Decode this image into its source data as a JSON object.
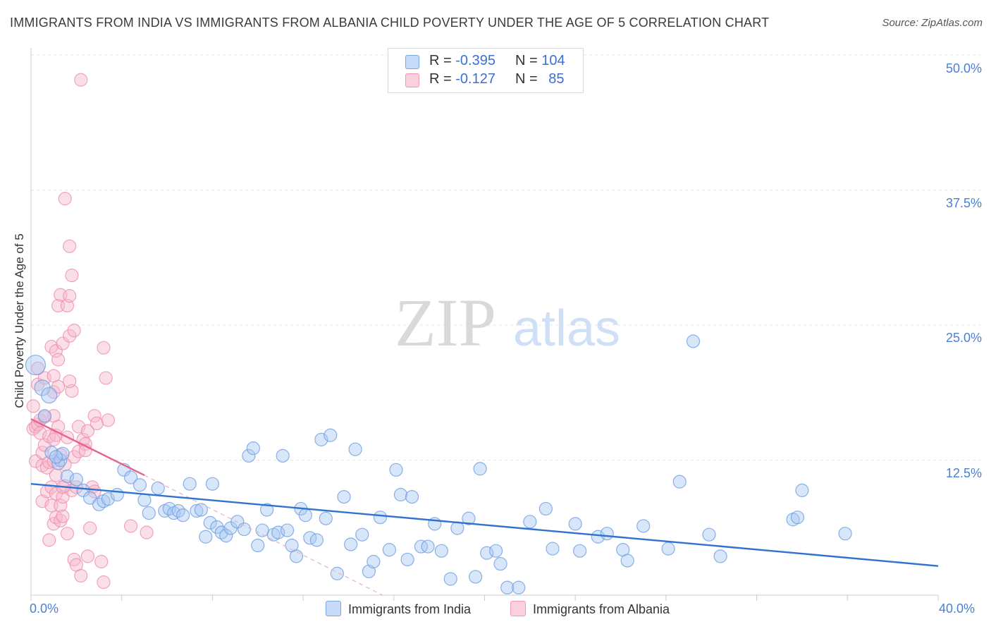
{
  "header": {
    "title": "IMMIGRANTS FROM INDIA VS IMMIGRANTS FROM ALBANIA CHILD POVERTY UNDER THE AGE OF 5 CORRELATION CHART",
    "source": "Source: ZipAtlas.com"
  },
  "watermark": {
    "zip": "ZIP",
    "atlas": "atlas"
  },
  "legend_stats": [
    {
      "r_label": "R =",
      "r_value": "-0.395",
      "n_label": "N =",
      "n_value": "104",
      "color": "#a9c8f5"
    },
    {
      "r_label": "R =",
      "r_value": "-0.127",
      "n_label": "N =",
      "n_value": "85",
      "color": "#f7b8cb"
    }
  ],
  "chart_data": {
    "type": "scatter",
    "title": "IMMIGRANTS FROM INDIA VS IMMIGRANTS FROM ALBANIA CHILD POVERTY UNDER THE AGE OF 5 CORRELATION CHART",
    "xlabel": "",
    "ylabel": "Child Poverty Under the Age of 5",
    "xlim": [
      0,
      40
    ],
    "ylim": [
      0,
      50
    ],
    "x_tick_labels": [
      "0.0%",
      "40.0%"
    ],
    "y_ticks": [
      12.5,
      25.0,
      37.5,
      50.0
    ],
    "y_tick_labels": [
      "12.5%",
      "25.0%",
      "37.5%",
      "50.0%"
    ],
    "grid": true,
    "legend_position": "bottom",
    "series": [
      {
        "name": "Immigrants from India",
        "color": "#a9c8f5",
        "stroke": "#6f9de0",
        "trend": {
          "x": [
            0,
            40
          ],
          "y": [
            10.3,
            2.7
          ],
          "color": "#2f72d0"
        },
        "points": [
          [
            0.2,
            21.3
          ],
          [
            0.5,
            19.2
          ],
          [
            0.8,
            18.5
          ],
          [
            0.6,
            16.6
          ],
          [
            0.9,
            13.2
          ],
          [
            1.2,
            12.2
          ],
          [
            1.3,
            12.5
          ],
          [
            1.4,
            13.1
          ],
          [
            1.6,
            11.0
          ],
          [
            2.0,
            10.7
          ],
          [
            2.3,
            9.7
          ],
          [
            2.6,
            9.0
          ],
          [
            3.0,
            8.4
          ],
          [
            3.2,
            8.7
          ],
          [
            3.4,
            8.9
          ],
          [
            3.8,
            9.3
          ],
          [
            4.1,
            11.6
          ],
          [
            4.4,
            10.9
          ],
          [
            4.8,
            10.2
          ],
          [
            5.0,
            8.8
          ],
          [
            5.2,
            7.6
          ],
          [
            5.6,
            9.9
          ],
          [
            5.9,
            7.8
          ],
          [
            6.1,
            8.0
          ],
          [
            6.3,
            7.6
          ],
          [
            6.5,
            7.8
          ],
          [
            6.7,
            7.4
          ],
          [
            7.0,
            10.3
          ],
          [
            7.3,
            7.8
          ],
          [
            7.5,
            7.9
          ],
          [
            7.7,
            5.4
          ],
          [
            7.9,
            6.7
          ],
          [
            8.0,
            10.3
          ],
          [
            8.2,
            6.3
          ],
          [
            8.4,
            5.8
          ],
          [
            8.6,
            5.5
          ],
          [
            8.8,
            6.2
          ],
          [
            9.1,
            6.8
          ],
          [
            9.4,
            6.1
          ],
          [
            9.6,
            12.9
          ],
          [
            9.8,
            13.6
          ],
          [
            10.0,
            4.6
          ],
          [
            10.2,
            6.0
          ],
          [
            10.4,
            7.9
          ],
          [
            10.7,
            5.6
          ],
          [
            10.9,
            5.8
          ],
          [
            11.1,
            12.9
          ],
          [
            11.3,
            6.0
          ],
          [
            11.5,
            4.6
          ],
          [
            11.7,
            3.6
          ],
          [
            11.9,
            8.0
          ],
          [
            12.1,
            7.4
          ],
          [
            12.3,
            5.3
          ],
          [
            12.6,
            5.1
          ],
          [
            12.8,
            14.4
          ],
          [
            13.0,
            7.1
          ],
          [
            13.2,
            14.8
          ],
          [
            13.5,
            2.0
          ],
          [
            13.8,
            9.1
          ],
          [
            14.1,
            4.7
          ],
          [
            14.3,
            13.5
          ],
          [
            14.6,
            5.6
          ],
          [
            14.9,
            2.2
          ],
          [
            15.1,
            3.1
          ],
          [
            15.4,
            7.2
          ],
          [
            15.8,
            4.2
          ],
          [
            16.1,
            11.6
          ],
          [
            16.3,
            9.3
          ],
          [
            16.6,
            3.3
          ],
          [
            16.8,
            9.1
          ],
          [
            17.2,
            4.5
          ],
          [
            17.5,
            4.5
          ],
          [
            17.8,
            6.6
          ],
          [
            18.1,
            4.1
          ],
          [
            18.5,
            1.5
          ],
          [
            18.8,
            6.2
          ],
          [
            19.3,
            7.1
          ],
          [
            19.6,
            1.7
          ],
          [
            19.8,
            11.7
          ],
          [
            20.1,
            3.9
          ],
          [
            20.5,
            4.1
          ],
          [
            20.7,
            2.9
          ],
          [
            21.0,
            0.7
          ],
          [
            21.5,
            0.7
          ],
          [
            22.0,
            6.8
          ],
          [
            22.7,
            8.0
          ],
          [
            23.0,
            4.3
          ],
          [
            24.0,
            6.6
          ],
          [
            24.2,
            4.1
          ],
          [
            25.0,
            5.4
          ],
          [
            25.4,
            5.7
          ],
          [
            26.1,
            4.2
          ],
          [
            26.3,
            3.2
          ],
          [
            27.0,
            6.4
          ],
          [
            28.1,
            4.3
          ],
          [
            28.6,
            10.5
          ],
          [
            29.2,
            23.5
          ],
          [
            29.9,
            5.6
          ],
          [
            30.4,
            3.6
          ],
          [
            33.6,
            7.0
          ],
          [
            33.8,
            7.2
          ],
          [
            34.0,
            9.7
          ],
          [
            35.9,
            5.7
          ],
          [
            1.1,
            12.8
          ]
        ]
      },
      {
        "name": "Immigrants from Albania",
        "color": "#f7b8cb",
        "stroke": "#ee8fae",
        "trend": {
          "x": [
            0,
            5
          ],
          "y": [
            16.3,
            11.1
          ],
          "color": "#e8628c"
        },
        "trend_extension": {
          "x": [
            5,
            15.5
          ],
          "y": [
            11.1,
            0
          ],
          "color": "#e6b7c6"
        },
        "points": [
          [
            0.1,
            17.5
          ],
          [
            0.1,
            15.4
          ],
          [
            0.2,
            15.6
          ],
          [
            0.2,
            12.4
          ],
          [
            0.3,
            19.5
          ],
          [
            0.3,
            15.8
          ],
          [
            0.4,
            15.0
          ],
          [
            0.5,
            13.2
          ],
          [
            0.5,
            8.7
          ],
          [
            0.5,
            12.0
          ],
          [
            0.6,
            20.1
          ],
          [
            0.6,
            13.9
          ],
          [
            0.7,
            11.8
          ],
          [
            0.7,
            9.6
          ],
          [
            0.8,
            14.7
          ],
          [
            0.8,
            12.3
          ],
          [
            0.9,
            23.0
          ],
          [
            0.9,
            10.0
          ],
          [
            0.9,
            8.3
          ],
          [
            1.0,
            20.3
          ],
          [
            1.0,
            18.8
          ],
          [
            1.0,
            16.6
          ],
          [
            1.0,
            12.4
          ],
          [
            1.0,
            6.6
          ],
          [
            1.1,
            22.6
          ],
          [
            1.1,
            14.8
          ],
          [
            1.1,
            11.1
          ],
          [
            1.1,
            9.4
          ],
          [
            1.1,
            7.2
          ],
          [
            1.2,
            26.8
          ],
          [
            1.2,
            21.8
          ],
          [
            1.2,
            19.3
          ],
          [
            1.2,
            15.6
          ],
          [
            1.3,
            27.8
          ],
          [
            1.3,
            13.0
          ],
          [
            1.3,
            8.3
          ],
          [
            1.3,
            6.9
          ],
          [
            1.4,
            23.3
          ],
          [
            1.4,
            9.1
          ],
          [
            1.4,
            7.3
          ],
          [
            1.5,
            36.7
          ],
          [
            1.5,
            12.1
          ],
          [
            1.5,
            10.1
          ],
          [
            1.6,
            26.8
          ],
          [
            1.6,
            5.7
          ],
          [
            1.7,
            32.3
          ],
          [
            1.7,
            27.7
          ],
          [
            1.7,
            24.0
          ],
          [
            1.8,
            29.6
          ],
          [
            1.8,
            18.9
          ],
          [
            1.8,
            9.7
          ],
          [
            1.9,
            24.5
          ],
          [
            1.9,
            12.8
          ],
          [
            1.9,
            3.3
          ],
          [
            2.0,
            2.8
          ],
          [
            2.0,
            10.0
          ],
          [
            2.1,
            15.6
          ],
          [
            2.1,
            13.3
          ],
          [
            2.2,
            47.7
          ],
          [
            2.2,
            1.8
          ],
          [
            2.3,
            14.4
          ],
          [
            2.4,
            14.0
          ],
          [
            2.4,
            13.4
          ],
          [
            2.5,
            15.2
          ],
          [
            2.5,
            3.6
          ],
          [
            2.6,
            6.2
          ],
          [
            2.7,
            10.0
          ],
          [
            2.8,
            9.6
          ],
          [
            2.8,
            16.6
          ],
          [
            2.9,
            15.9
          ],
          [
            3.1,
            3.1
          ],
          [
            3.2,
            1.2
          ],
          [
            3.2,
            22.9
          ],
          [
            3.3,
            20.1
          ],
          [
            3.4,
            16.2
          ],
          [
            4.4,
            6.4
          ],
          [
            5.1,
            5.8
          ],
          [
            0.3,
            21.0
          ],
          [
            0.4,
            16.2
          ],
          [
            0.6,
            16.5
          ],
          [
            1.0,
            14.4
          ],
          [
            1.4,
            10.0
          ],
          [
            1.6,
            14.6
          ],
          [
            1.7,
            19.8
          ],
          [
            0.8,
            5.1
          ]
        ]
      }
    ]
  },
  "legend": {
    "india_label": "Immigrants from India",
    "albania_label": "Immigrants from Albania"
  }
}
